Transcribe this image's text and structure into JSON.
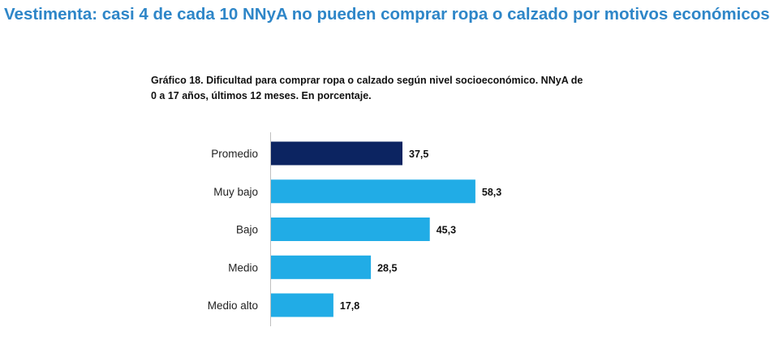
{
  "page": {
    "headline": "Vestimenta: casi 4 de cada 10 NNyA no pueden comprar ropa o calzado por motivos económicos"
  },
  "chart_data": {
    "type": "bar",
    "orientation": "horizontal",
    "title_lines": [
      "Gráfico 18. Dificultad para comprar ropa o calzado según nivel socioeconómico. NNyA de",
      "0 a 17 años, últimos 12 meses. En porcentaje."
    ],
    "categories": [
      "Promedio",
      "Muy bajo",
      "Bajo",
      "Medio",
      "Medio alto"
    ],
    "values": [
      37.5,
      58.3,
      45.3,
      28.5,
      17.8
    ],
    "value_labels": [
      "37,5",
      "58,3",
      "45,3",
      "28,5",
      "17,8"
    ],
    "colors": {
      "highlight": "#0c2461",
      "bar": "#21ace6",
      "axis": "#bfbfbf",
      "headline": "#2e86c8"
    },
    "highlight_index": 0,
    "xlim": [
      0,
      100
    ],
    "grid": false,
    "legend": "none"
  }
}
